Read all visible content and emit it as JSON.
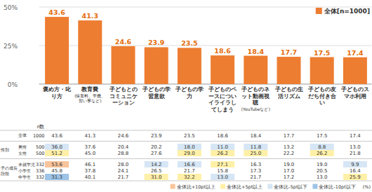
{
  "chart_data": {
    "type": "bar",
    "categories": [
      "褒め方・叱り方",
      "教育費(保育料、学費、習い事など)",
      "子どもとのコミュニケーション",
      "子どもの学習意欲",
      "子どもの学力",
      "子どものペースについイライラしてしまう",
      "子どものネット動画視聴(YouTubeなど)",
      "子どもの生活リズム",
      "子どもの友だち付き合い",
      "子どものスマホ利用"
    ],
    "series": [
      {
        "name": "全体[n=1000]",
        "color": "#ED7D31",
        "values": [
          43.6,
          41.3,
          24.6,
          23.9,
          23.5,
          18.6,
          18.4,
          17.7,
          17.5,
          17.4
        ]
      }
    ],
    "ylim": [
      0,
      50
    ],
    "yticks": [
      {
        "value": 0,
        "label": "0%"
      },
      {
        "value": 25,
        "label": "25%"
      },
      {
        "value": 50,
        "label": "50%"
      }
    ],
    "grid": true,
    "legend": "upper right",
    "data_labels": true
  },
  "table": {
    "n_header": "n数",
    "total": {
      "label": "全体",
      "n": "1000",
      "values": [
        "43.6",
        "41.3",
        "24.6",
        "23.9",
        "23.5",
        "18.6",
        "18.4",
        "17.7",
        "17.5",
        "17.4"
      ],
      "colors": [
        null,
        null,
        null,
        null,
        null,
        null,
        null,
        null,
        null,
        null
      ]
    },
    "groups": [
      {
        "label": "性別",
        "rows": [
          {
            "label": "男性",
            "n": "500",
            "values": [
              "36.0",
              "37.6",
              "20.4",
              "20.2",
              "18.0",
              "11.0",
              "11.8",
              "13.2",
              "8.8",
              "13.0"
            ],
            "colors": [
              "#D6E6F5",
              null,
              null,
              null,
              "#D6E6F5",
              "#D6E6F5",
              "#D6E6F5",
              null,
              "#D6E6F5",
              null
            ]
          },
          {
            "label": "女性",
            "n": "500",
            "values": [
              "51.2",
              "45.0",
              "28.8",
              "27.6",
              "29.0",
              "26.2",
              "25.0",
              "22.2",
              "26.2",
              "21.8"
            ],
            "colors": [
              "#FFF0A8",
              null,
              null,
              null,
              "#FFF0A8",
              "#FFF0A8",
              "#FFF0A8",
              null,
              "#FFF0A8",
              null
            ]
          }
        ]
      },
      {
        "label": "子の成長段階",
        "rows": [
          {
            "label": "未就学児",
            "n": "332",
            "values": [
              "53.6",
              "46.1",
              "28.0",
              "14.2",
              "16.6",
              "27.1",
              "16.3",
              "19.0",
              "19.0",
              "9.9"
            ],
            "colors": [
              "#F9C49A",
              null,
              null,
              "#D6E6F5",
              "#D6E6F5",
              "#FFF0A8",
              null,
              null,
              null,
              "#D6E6F5"
            ]
          },
          {
            "label": "小学生",
            "n": "336",
            "values": [
              "45.8",
              "37.8",
              "24.1",
              "26.5",
              "21.7",
              "15.8",
              "17.3",
              "17.0",
              "20.5",
              "16.4"
            ],
            "colors": [
              null,
              null,
              null,
              null,
              null,
              null,
              null,
              null,
              null,
              null
            ]
          },
          {
            "label": "中学生",
            "n": "332",
            "values": [
              "31.3",
              "40.1",
              "21.7",
              "31.0",
              "32.2",
              "13.0",
              "21.7",
              "17.2",
              "13.0",
              "25.9"
            ],
            "colors": [
              "#9DC3E6",
              null,
              null,
              "#FFF0A8",
              "#FFF0A8",
              "#D6E6F5",
              null,
              null,
              null,
              "#FFF0A8"
            ]
          }
        ]
      }
    ],
    "legend": [
      {
        "label": "全体比+10pt以上",
        "color": "#F9C49A"
      },
      {
        "label": "全体比+5pt以上",
        "color": "#FFF0A8"
      },
      {
        "label": "全体比-5pt以下",
        "color": "#D6E6F5"
      },
      {
        "label": "全体比-10pt以下",
        "color": "#9DC3E6"
      }
    ],
    "unit": "(%)"
  }
}
